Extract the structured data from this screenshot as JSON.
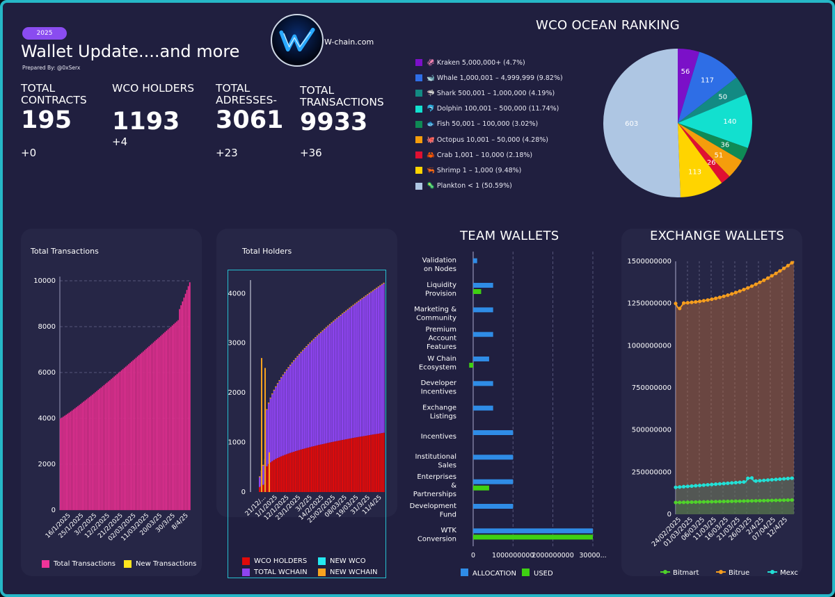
{
  "header": {
    "badge": "2025",
    "title": "Wallet Update....and more",
    "prepared_by": "Prepared By: @0xSerx",
    "logo_text": "W-chain.com"
  },
  "kpis": [
    {
      "label": "TOTAL CONTRACTS",
      "value": "195",
      "delta": "+0"
    },
    {
      "label": "WCO HOLDERS",
      "value": "1193",
      "delta": "+4"
    },
    {
      "label": "TOTAL ADRESSES-",
      "value": "3061",
      "delta": "+23"
    },
    {
      "label": "TOTAL TRANSACTIONS",
      "value": "9933",
      "delta": "+36"
    }
  ],
  "chart_data": [
    {
      "id": "ocean_ranking",
      "type": "pie",
      "title": "WCO OCEAN RANKING",
      "slices": [
        {
          "label": "🦑 Kraken 5,000,000+ (4.7%)",
          "value": 56,
          "color": "#7b10c8"
        },
        {
          "label": "🐋 Whale 1,000,001 – 4,999,999 (9.82%)",
          "value": 117,
          "color": "#2e6ee6"
        },
        {
          "label": "🦈 Shark 500,001 – 1,000,000 (4.19%)",
          "value": 50,
          "color": "#138a83"
        },
        {
          "label": "🐬 Dolphin 100,001 – 500,000 (11.74%)",
          "value": 140,
          "color": "#12e0cf"
        },
        {
          "label": "🐟 Fish 50,001 – 100,000 (3.02%)",
          "value": 36,
          "color": "#0f8a55"
        },
        {
          "label": "🐙 Octopus 10,001 – 50,000 (4.28%)",
          "value": 51,
          "color": "#f59d0c"
        },
        {
          "label": "🦀 Crab 1,001 – 10,000 (2.18%)",
          "value": 26,
          "color": "#e01032"
        },
        {
          "label": "🦐 Shrimp 1 – 1,000 (9.48%)",
          "value": 113,
          "color": "#ffd400"
        },
        {
          "label": "🦠 Plankton < 1 (50.59%)",
          "value": 603,
          "color": "#aec6e3"
        }
      ]
    },
    {
      "id": "total_transactions",
      "type": "bar",
      "title": "Total Transactions",
      "ylim": [
        0,
        10000
      ],
      "yticks": [
        0,
        2000,
        4000,
        6000,
        8000,
        10000
      ],
      "xticks": [
        "16/1/2025",
        "25/1/2025",
        "3/2/2025",
        "12/2/2025",
        "21/2/2025",
        "02/03/2025",
        "11/03/2025",
        "20/03/25",
        "30/3/25",
        "8/4/25"
      ],
      "start": 4000,
      "end": 9933,
      "n_points": 90,
      "series": [
        {
          "name": "Total Transactions",
          "color": "#f0349a"
        },
        {
          "name": "New Transactions",
          "color": "#ffe51e"
        }
      ]
    },
    {
      "id": "total_holders",
      "type": "bar",
      "title": "Total Holders",
      "ylim": [
        0,
        4200
      ],
      "yticks": [
        0,
        1000,
        2000,
        3000,
        4000
      ],
      "xticks": [
        "21/12/...",
        "1/1/2025",
        "12/1/2025",
        "23/1/2025",
        "3/2/25",
        "14/2/2025",
        "25/02/2025",
        "08/03/25",
        "19/03/25",
        "31/3/25",
        "11/4/25"
      ],
      "series": [
        {
          "name": "WCO HOLDERS",
          "color": "#e00a0a",
          "end": 1193
        },
        {
          "name": "NEW WCO",
          "color": "#25e8f0"
        },
        {
          "name": "TOTAL WCHAIN",
          "color": "#8e44f0",
          "end": 4200
        },
        {
          "name": "NEW WCHAIN",
          "color": "#f6a31f"
        }
      ]
    },
    {
      "id": "team_wallets",
      "type": "bar",
      "orientation": "horizontal",
      "title": "TEAM WALLETS",
      "xlim": [
        0,
        3000000000
      ],
      "xticks": [
        "0",
        "1000000000",
        "2000000000",
        "30000..."
      ],
      "categories": [
        "Validation on Nodes",
        "Liquidity Provision",
        "Marketing & Community",
        "Premium Account Features",
        "W Chain Ecosystem",
        "Developer Incentives",
        "Exchange Listings",
        "Incentives",
        "Institutional Sales",
        "Enterprises & Partnerships",
        "Development Fund",
        "WTK Conversion"
      ],
      "series": [
        {
          "name": "ALLOCATION",
          "color": "#2f8ce6",
          "values": [
            100000000,
            500000000,
            500000000,
            500000000,
            400000000,
            500000000,
            500000000,
            1000000000,
            1000000000,
            1000000000,
            1000000000,
            3000000000
          ]
        },
        {
          "name": "USED",
          "color": "#3ed112",
          "values": [
            0,
            200000000,
            0,
            0,
            -100000000,
            0,
            0,
            0,
            0,
            400000000,
            0,
            3000000000
          ]
        }
      ]
    },
    {
      "id": "exchange_wallets",
      "type": "area",
      "title": "EXCHANGE WALLETS",
      "ylim": [
        0,
        1500000000
      ],
      "yticks": [
        "0",
        "250000000",
        "500000000",
        "750000000",
        "1000000000",
        "1250000000",
        "1500000000"
      ],
      "xticks": [
        "24/02/2025",
        "01/03/2025",
        "06/03/25",
        "11/03/25",
        "16/03/25",
        "21/03/25",
        "26/03/25",
        "2/4/25",
        "07/04/25",
        "12/4/25"
      ],
      "series": [
        {
          "name": "Bitmart",
          "color": "#4fd32a",
          "start": 70000000,
          "end": 85000000
        },
        {
          "name": "Bitrue",
          "color": "#f59d1e",
          "start": 1250000000,
          "end": 1500000000
        },
        {
          "name": "Mexc",
          "color": "#22e0d6",
          "start": 160000000,
          "end": 215000000
        }
      ]
    }
  ]
}
